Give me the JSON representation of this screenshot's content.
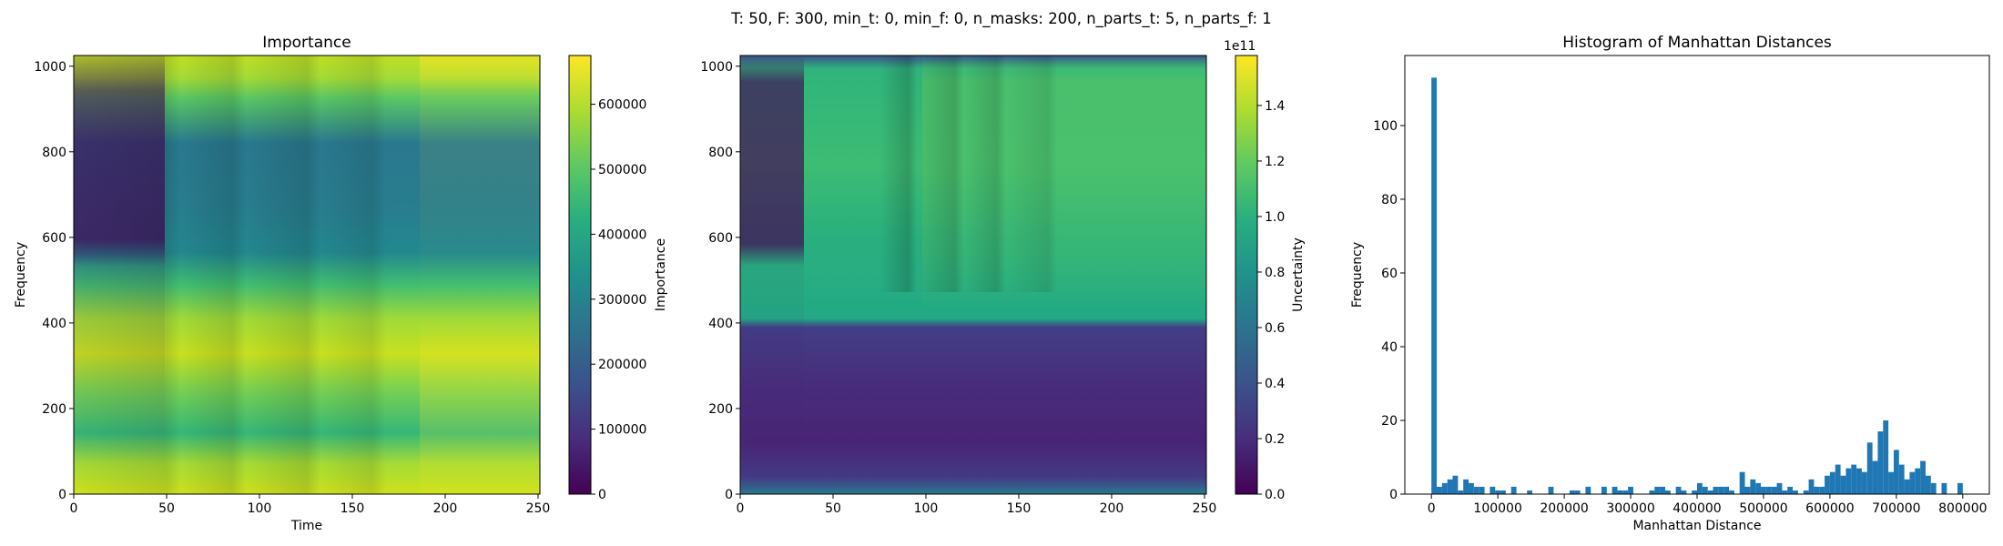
{
  "figure": {
    "suptitle": "T: 50, F: 300, min_t: 0, min_f: 0, n_masks: 200, n_parts_t: 5, n_parts_f: 1"
  },
  "chart_data": [
    {
      "type": "heatmap",
      "title": "Importance",
      "xlabel": "Time",
      "ylabel": "Frequency",
      "xlim": [
        0,
        251
      ],
      "ylim": [
        0,
        1025
      ],
      "xticks": [
        0,
        50,
        100,
        150,
        200,
        250
      ],
      "yticks": [
        0,
        200,
        400,
        600,
        800,
        1000
      ],
      "colormap": "viridis",
      "colorbar": {
        "label": "Importance",
        "range": [
          0,
          675000
        ],
        "ticks": [
          0,
          100000,
          200000,
          300000,
          400000,
          500000,
          600000
        ],
        "offset_text": ""
      }
    },
    {
      "type": "heatmap",
      "title": "",
      "xlabel": "",
      "ylabel": "",
      "xlim": [
        0,
        251
      ],
      "ylim": [
        0,
        1025
      ],
      "xticks": [
        0,
        50,
        100,
        150,
        200,
        250
      ],
      "yticks": [
        0,
        200,
        400,
        600,
        800,
        1000
      ],
      "colormap": "viridis",
      "colorbar": {
        "label": "Uncertainty",
        "range": [
          0,
          1.58
        ],
        "ticks": [
          0.0,
          0.2,
          0.4,
          0.6,
          0.8,
          1.0,
          1.2,
          1.4
        ],
        "offset_text": "1e11"
      }
    },
    {
      "type": "bar",
      "title": "Histogram of Manhattan Distances",
      "xlabel": "Manhattan Distance",
      "ylabel": "Frequency",
      "xlim": [
        -40000,
        840000
      ],
      "ylim": [
        0,
        119
      ],
      "xticks": [
        0,
        100000,
        200000,
        300000,
        400000,
        500000,
        600000,
        700000,
        800000
      ],
      "yticks": [
        0,
        20,
        40,
        60,
        80,
        100
      ],
      "bar_color": "#1f77b4",
      "bin_width": 8000,
      "bins": [
        {
          "x": 0,
          "count": 113
        },
        {
          "x": 8000,
          "count": 2
        },
        {
          "x": 16000,
          "count": 3
        },
        {
          "x": 24000,
          "count": 4
        },
        {
          "x": 32000,
          "count": 5
        },
        {
          "x": 40000,
          "count": 1
        },
        {
          "x": 48000,
          "count": 4
        },
        {
          "x": 56000,
          "count": 3
        },
        {
          "x": 64000,
          "count": 2
        },
        {
          "x": 72000,
          "count": 2
        },
        {
          "x": 88000,
          "count": 2
        },
        {
          "x": 96000,
          "count": 1
        },
        {
          "x": 104000,
          "count": 1
        },
        {
          "x": 120000,
          "count": 2
        },
        {
          "x": 144000,
          "count": 1
        },
        {
          "x": 176000,
          "count": 2
        },
        {
          "x": 208000,
          "count": 1
        },
        {
          "x": 216000,
          "count": 1
        },
        {
          "x": 232000,
          "count": 2
        },
        {
          "x": 256000,
          "count": 2
        },
        {
          "x": 272000,
          "count": 2
        },
        {
          "x": 280000,
          "count": 1
        },
        {
          "x": 288000,
          "count": 1
        },
        {
          "x": 296000,
          "count": 2
        },
        {
          "x": 328000,
          "count": 1
        },
        {
          "x": 336000,
          "count": 2
        },
        {
          "x": 344000,
          "count": 2
        },
        {
          "x": 352000,
          "count": 1
        },
        {
          "x": 368000,
          "count": 2
        },
        {
          "x": 376000,
          "count": 1
        },
        {
          "x": 392000,
          "count": 1
        },
        {
          "x": 400000,
          "count": 3
        },
        {
          "x": 408000,
          "count": 2
        },
        {
          "x": 416000,
          "count": 1
        },
        {
          "x": 424000,
          "count": 2
        },
        {
          "x": 432000,
          "count": 2
        },
        {
          "x": 440000,
          "count": 2
        },
        {
          "x": 448000,
          "count": 1
        },
        {
          "x": 464000,
          "count": 6
        },
        {
          "x": 472000,
          "count": 2
        },
        {
          "x": 480000,
          "count": 4
        },
        {
          "x": 488000,
          "count": 3
        },
        {
          "x": 496000,
          "count": 2
        },
        {
          "x": 504000,
          "count": 2
        },
        {
          "x": 512000,
          "count": 2
        },
        {
          "x": 520000,
          "count": 3
        },
        {
          "x": 528000,
          "count": 1
        },
        {
          "x": 536000,
          "count": 2
        },
        {
          "x": 544000,
          "count": 1
        },
        {
          "x": 560000,
          "count": 1
        },
        {
          "x": 568000,
          "count": 4
        },
        {
          "x": 576000,
          "count": 2
        },
        {
          "x": 584000,
          "count": 2
        },
        {
          "x": 592000,
          "count": 5
        },
        {
          "x": 600000,
          "count": 6
        },
        {
          "x": 608000,
          "count": 8
        },
        {
          "x": 616000,
          "count": 5
        },
        {
          "x": 624000,
          "count": 7
        },
        {
          "x": 632000,
          "count": 8
        },
        {
          "x": 640000,
          "count": 7
        },
        {
          "x": 648000,
          "count": 6
        },
        {
          "x": 656000,
          "count": 14
        },
        {
          "x": 664000,
          "count": 9
        },
        {
          "x": 672000,
          "count": 17
        },
        {
          "x": 680000,
          "count": 20
        },
        {
          "x": 688000,
          "count": 6
        },
        {
          "x": 696000,
          "count": 12
        },
        {
          "x": 704000,
          "count": 8
        },
        {
          "x": 712000,
          "count": 4
        },
        {
          "x": 720000,
          "count": 6
        },
        {
          "x": 728000,
          "count": 7
        },
        {
          "x": 736000,
          "count": 9
        },
        {
          "x": 744000,
          "count": 5
        },
        {
          "x": 752000,
          "count": 3
        },
        {
          "x": 768000,
          "count": 3
        },
        {
          "x": 792000,
          "count": 3
        }
      ]
    }
  ]
}
